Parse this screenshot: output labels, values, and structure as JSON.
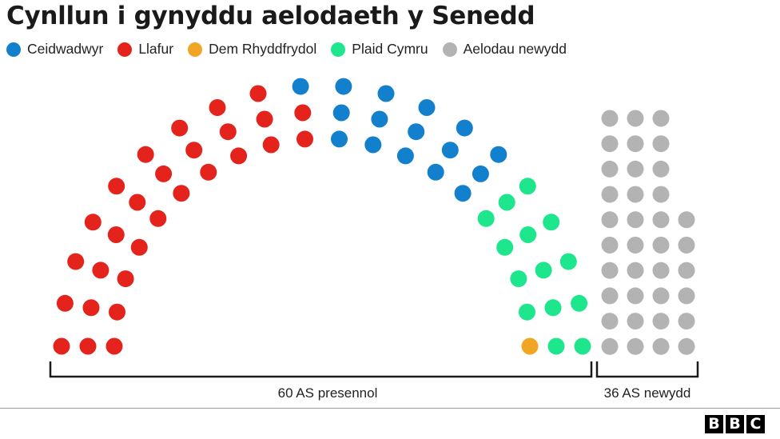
{
  "chart_data": {
    "type": "parliament",
    "title": "Cynllun i gynyddu aelodaeth y Senedd",
    "legend": [
      {
        "key": "ceid",
        "label": "Ceidwadwyr",
        "color": "#1380cd"
      },
      {
        "key": "llaf",
        "label": "Llafur",
        "color": "#e4241c"
      },
      {
        "key": "dem",
        "label": "Dem Rhyddfrydol",
        "color": "#f0a623"
      },
      {
        "key": "plaid",
        "label": "Plaid Cymru",
        "color": "#1ee68c"
      },
      {
        "key": "new",
        "label": "Aelodau newydd",
        "color": "#b3b3b3"
      }
    ],
    "seats": {
      "llaf": 29,
      "ceid": 16,
      "plaid": 14,
      "dem": 1,
      "new": 36
    },
    "groups": [
      {
        "label": "60 AS presennol",
        "seats": 60
      },
      {
        "label": "36 AS newydd",
        "seats": 36
      }
    ],
    "legend_position": "top-left"
  },
  "logo": {
    "letters": [
      "B",
      "B",
      "C"
    ]
  }
}
